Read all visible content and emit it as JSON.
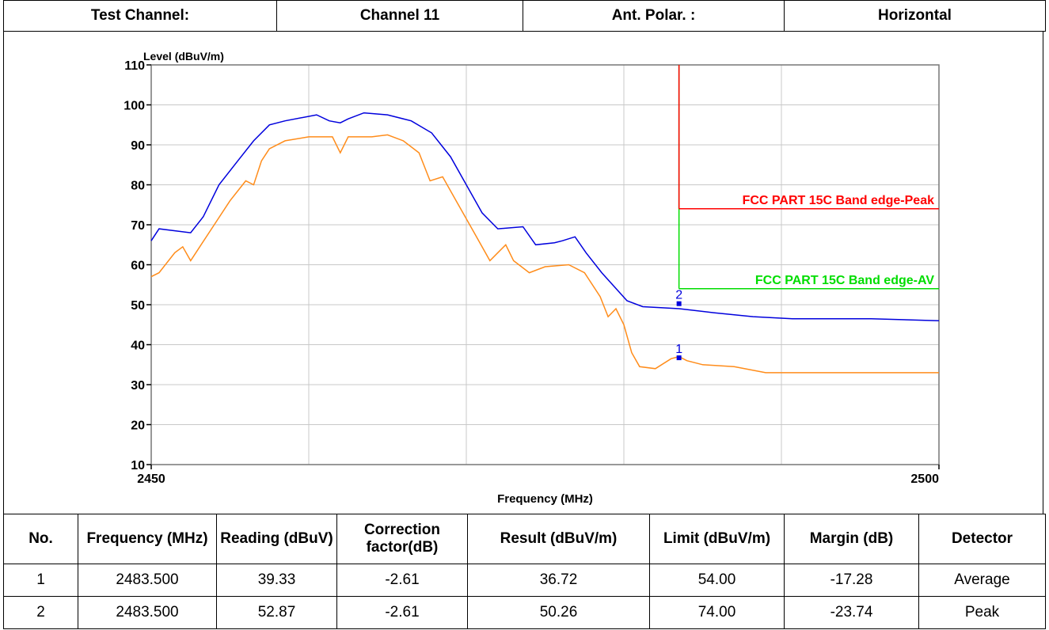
{
  "header": {
    "cells": [
      "Test Channel:",
      "Channel 11",
      "Ant. Polar. :",
      "Horizontal"
    ]
  },
  "chart_data": {
    "type": "line",
    "ylabel": "Level (dBuV/m)",
    "xlabel": "Frequency (MHz)",
    "xlim": [
      2450,
      2500
    ],
    "xticks": [
      2450,
      2500
    ],
    "xgrid": [
      2450,
      2460,
      2470,
      2480,
      2490,
      2500
    ],
    "ylim": [
      10,
      110
    ],
    "yticks": [
      10,
      20,
      30,
      40,
      50,
      60,
      70,
      80,
      90,
      100,
      110
    ],
    "grid": true,
    "series": [
      {
        "name": "Peak",
        "color": "#0000dd",
        "x": [
          2450,
          2450.5,
          2452.5,
          2453.3,
          2454.3,
          2455.5,
          2456.5,
          2457.5,
          2458.5,
          2460.5,
          2461.3,
          2462,
          2462.5,
          2463.5,
          2465,
          2466.5,
          2467.8,
          2469,
          2470,
          2471,
          2472,
          2473.6,
          2474.4,
          2475.6,
          2476.1,
          2476.9,
          2477.6,
          2478.6,
          2480.2,
          2481.2,
          2483.5,
          2485.7,
          2488.2,
          2490.7,
          2493.2,
          2495.7,
          2500
        ],
        "values": [
          66,
          69,
          68,
          72,
          80,
          86,
          91,
          95,
          96,
          97.5,
          96,
          95.5,
          96.5,
          98,
          97.5,
          96,
          93,
          87,
          80,
          73,
          69,
          69.5,
          65,
          65.5,
          66,
          67,
          63,
          58,
          51,
          49.5,
          49,
          48,
          47,
          46.5,
          46.5,
          46.5,
          46
        ]
      },
      {
        "name": "Average",
        "color": "#ff8c1a",
        "x": [
          2450,
          2450.5,
          2451.5,
          2452,
          2452.5,
          2453,
          2454,
          2455,
          2456,
          2456.5,
          2457,
          2457.5,
          2458.5,
          2460,
          2461.5,
          2462,
          2462.5,
          2464,
          2465,
          2466,
          2467,
          2467.7,
          2468.5,
          2469.5,
          2470.5,
          2471.5,
          2472,
          2472.5,
          2473,
          2474,
          2475,
          2476.5,
          2477.5,
          2478.5,
          2479,
          2479.5,
          2480,
          2480.5,
          2481,
          2482,
          2483,
          2483.5,
          2484,
          2485,
          2487,
          2489,
          2492,
          2495,
          2500
        ],
        "values": [
          57,
          58,
          63,
          64.5,
          61,
          64,
          70,
          76,
          81,
          80,
          86,
          89,
          91,
          92,
          92,
          88,
          92,
          92,
          92.5,
          91,
          88,
          81,
          82,
          75,
          68,
          61,
          63,
          65,
          61,
          58,
          59.5,
          60,
          58,
          52,
          47,
          49,
          45,
          38,
          34.5,
          34,
          36.5,
          37,
          36,
          35,
          34.5,
          33,
          33,
          33,
          33
        ]
      }
    ],
    "limits": [
      {
        "name": "FCC PART 15C Band edge-AV",
        "color": "#00dd00",
        "x": 2483.5,
        "value": 54
      },
      {
        "name": "FCC PART 15C Band edge-Peak",
        "color": "#ff0000",
        "x": 2483.5,
        "value": 74
      }
    ],
    "markers": [
      {
        "label": "1",
        "x": 2483.5,
        "y": 36.72
      },
      {
        "label": "2",
        "x": 2483.5,
        "y": 50.26
      }
    ]
  },
  "table": {
    "header": [
      "No.",
      "Frequency (MHz)",
      "Reading (dBuV)",
      "Correction factor(dB)",
      "Result (dBuV/m)",
      "Limit (dBuV/m)",
      "Margin (dB)",
      "Detector"
    ],
    "rows": [
      [
        "1",
        "2483.500",
        "39.33",
        "-2.61",
        "36.72",
        "54.00",
        "-17.28",
        "Average"
      ],
      [
        "2",
        "2483.500",
        "52.87",
        "-2.61",
        "50.26",
        "74.00",
        "-23.74",
        "Peak"
      ]
    ]
  }
}
